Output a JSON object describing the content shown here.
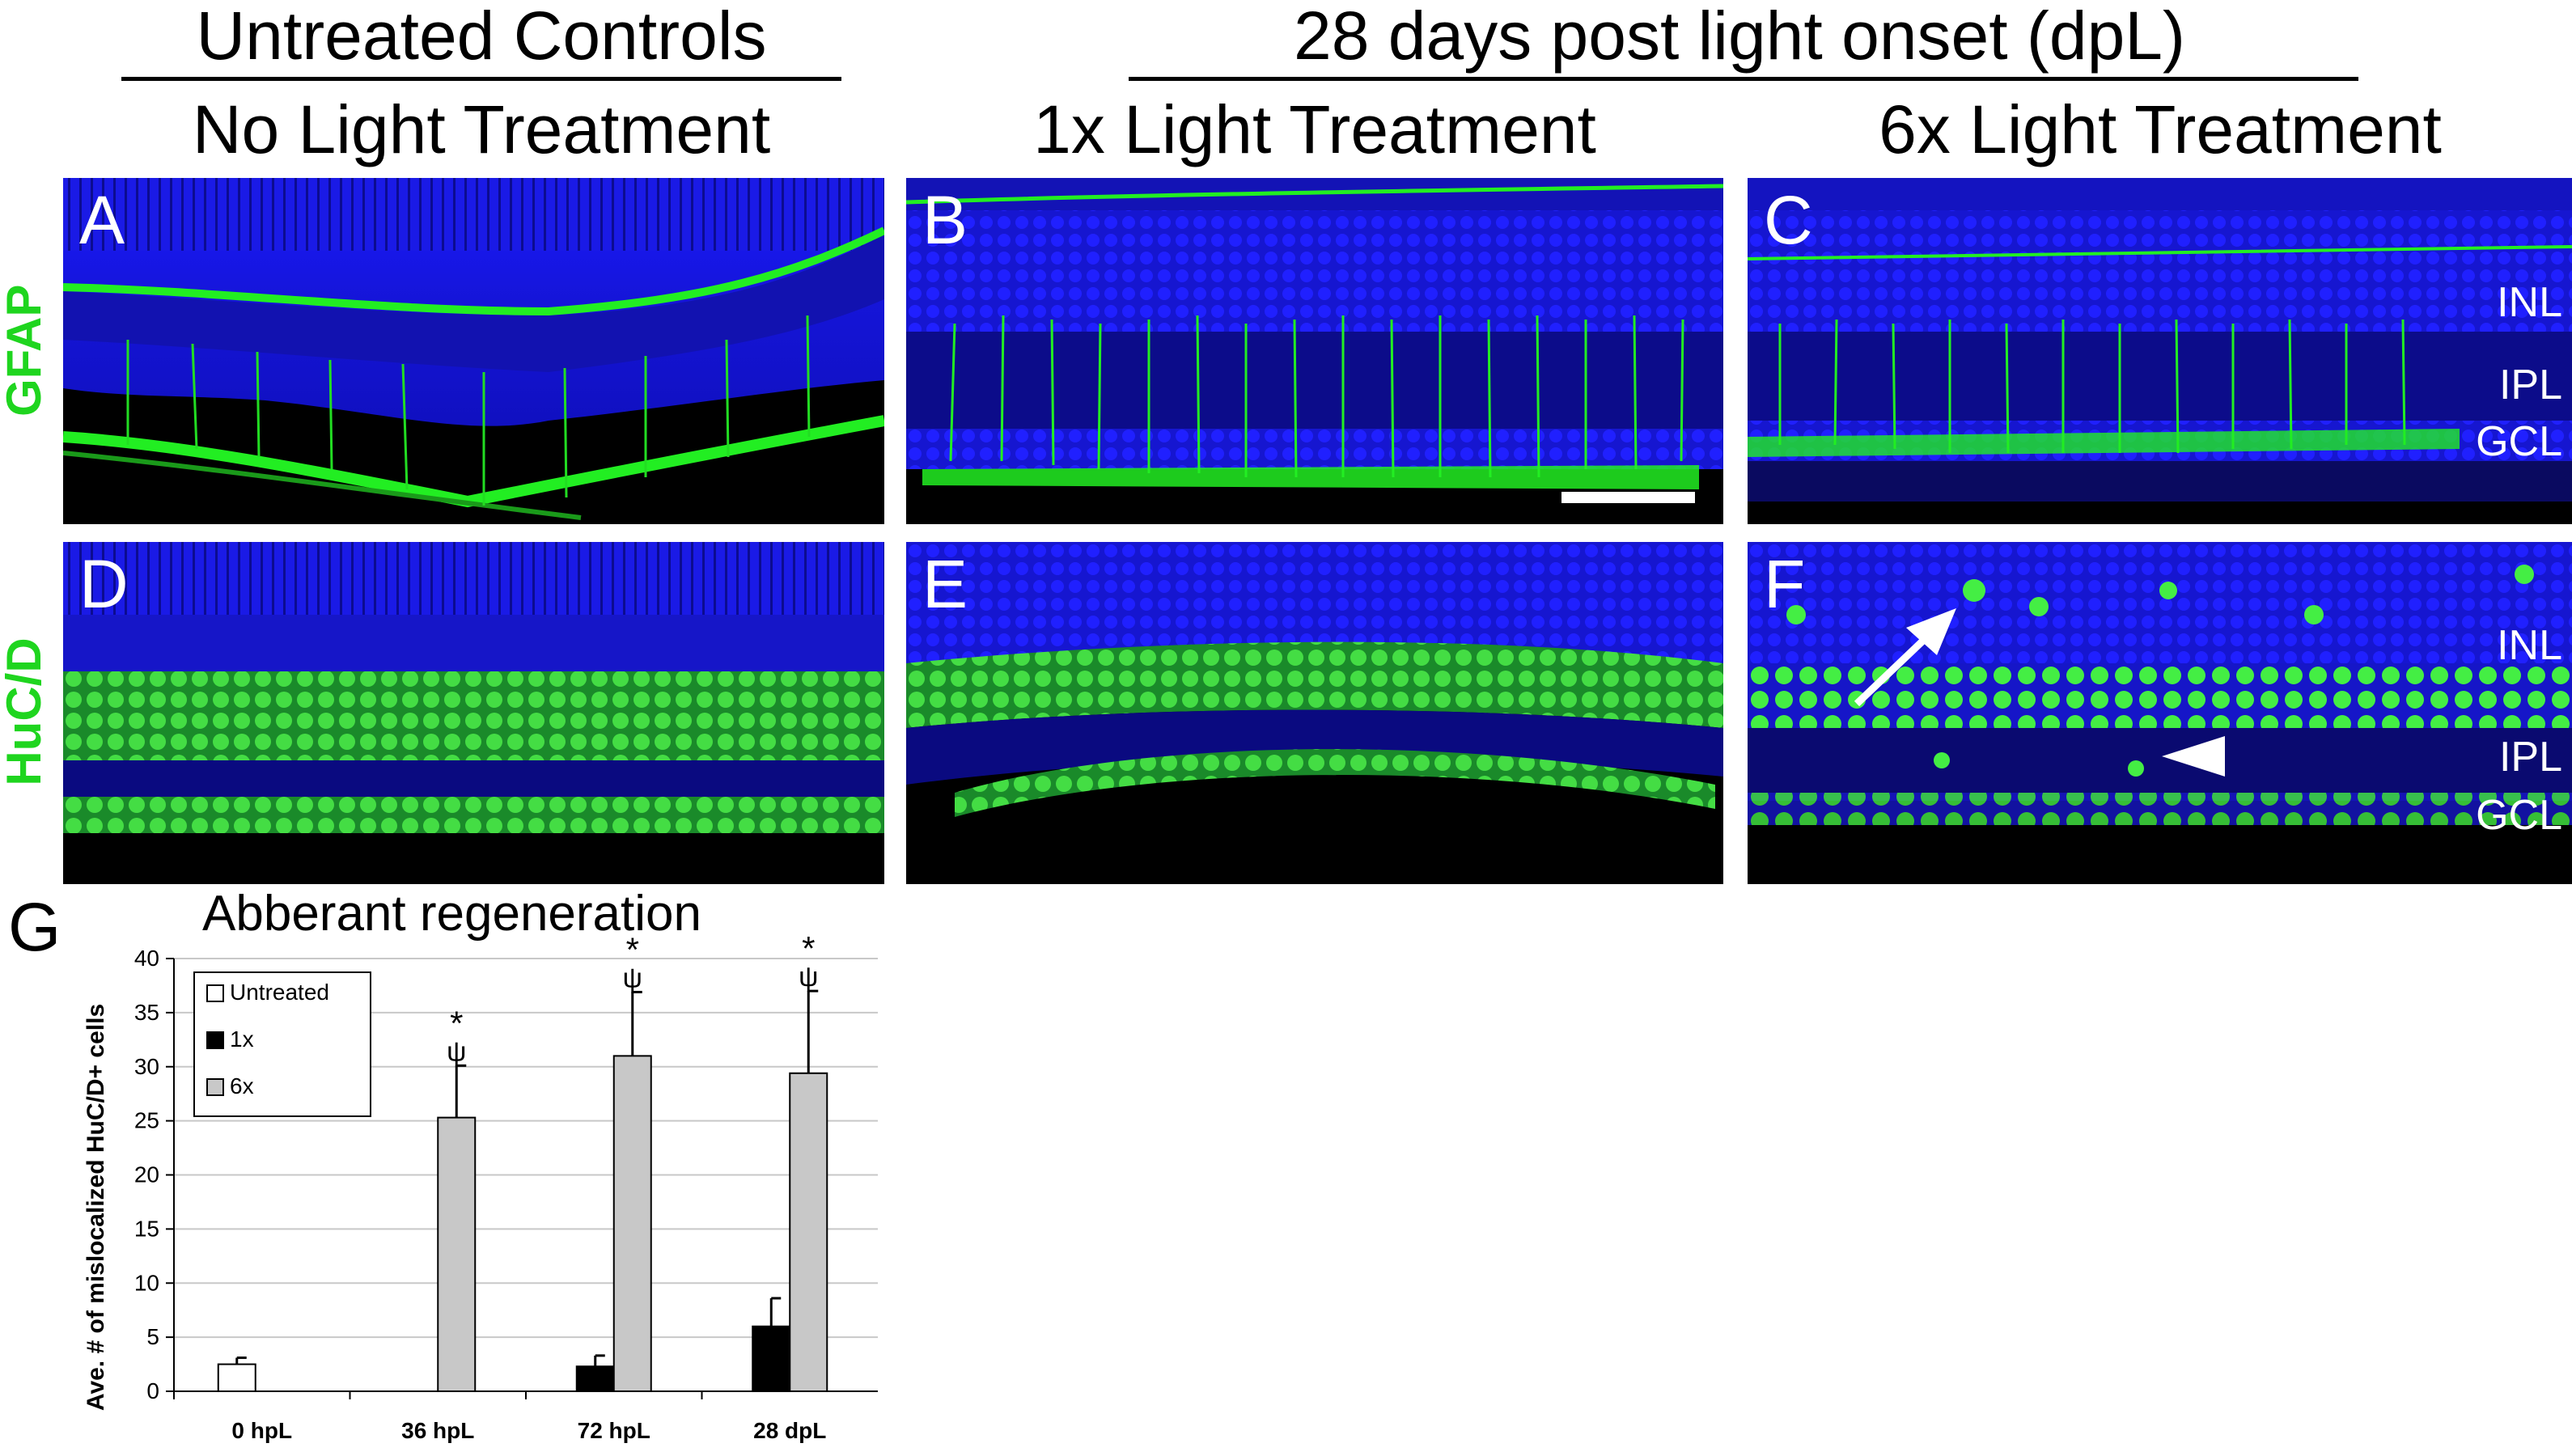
{
  "headers": {
    "group_left": "Untreated Controls",
    "group_right": "28 days post light onset (dpL)",
    "col1": "No Light Treatment",
    "col2": "1x Light Treatment",
    "col3": "6x Light Treatment"
  },
  "row_labels": {
    "top": "GFAP",
    "bottom": "HuC/D"
  },
  "panels": {
    "A": "A",
    "B": "B",
    "C": "C",
    "D": "D",
    "E": "E",
    "F": "F"
  },
  "layer_labels": {
    "C": [
      "INL",
      "IPL",
      "GCL"
    ],
    "F": [
      "INL",
      "IPL",
      "GCL"
    ]
  },
  "colors": {
    "nuclei": "#1010e0",
    "marker": "#22ee22",
    "row_label": "#1fd51f",
    "untreated_bar": "#ffffff",
    "x1_bar": "#000000",
    "x6_bar": "#c8c8c8"
  },
  "chart_data": {
    "panel_label": "G",
    "type": "bar",
    "title": "Abberant regeneration",
    "ylabel": "Ave. # of mislocalized HuC/D+ cells",
    "xlabel": "",
    "categories": [
      "0 hpL",
      "36 hpL",
      "72 hpL",
      "28 dpL"
    ],
    "ylim": [
      0,
      40
    ],
    "yticks": [
      0,
      5,
      10,
      15,
      20,
      25,
      30,
      35,
      40
    ],
    "grid": true,
    "legend_position": "top-left",
    "series": [
      {
        "name": "Untreated",
        "values": [
          2.5,
          null,
          null,
          null
        ],
        "errors": [
          0.6,
          null,
          null,
          null
        ]
      },
      {
        "name": "1x",
        "values": [
          null,
          0,
          2.3,
          6.0
        ],
        "errors": [
          null,
          0,
          1.0,
          2.6
        ]
      },
      {
        "name": "6x",
        "values": [
          null,
          25.3,
          31.0,
          29.4
        ],
        "errors": [
          null,
          4.8,
          5.9,
          7.6
        ]
      }
    ],
    "annotations": [
      {
        "category": "36 hpL",
        "marks": [
          "*",
          "ψ"
        ]
      },
      {
        "category": "72 hpL",
        "marks": [
          "*",
          "ψ"
        ]
      },
      {
        "category": "28 dpL",
        "marks": [
          "*",
          "ψ"
        ]
      }
    ]
  }
}
